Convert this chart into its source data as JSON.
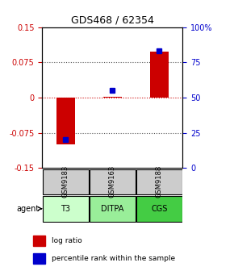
{
  "title": "GDS468 / 62354",
  "samples": [
    "GSM9183",
    "GSM9163",
    "GSM9188"
  ],
  "agents": [
    "T3",
    "DITPA",
    "CGS"
  ],
  "log_ratios": [
    -0.1,
    0.002,
    0.098
  ],
  "percentile_ranks": [
    20,
    55,
    83
  ],
  "ylim_left": [
    -0.15,
    0.15
  ],
  "ylim_right": [
    0,
    100
  ],
  "yticks_left": [
    -0.15,
    -0.075,
    0,
    0.075,
    0.15
  ],
  "yticks_right": [
    0,
    25,
    50,
    75,
    100
  ],
  "ytick_labels_left": [
    "-0.15",
    "-0.075",
    "0",
    "0.075",
    "0.15"
  ],
  "ytick_labels_right": [
    "0",
    "25",
    "50",
    "75",
    "100%"
  ],
  "bar_color": "#cc0000",
  "dot_color": "#0000cc",
  "agent_colors": [
    "#ccffcc",
    "#99ee99",
    "#44cc44"
  ],
  "sample_bg": "#cccccc",
  "grid_color": "#555555",
  "zero_line_color": "#cc0000",
  "bar_width": 0.4,
  "legend_bar_label": "log ratio",
  "legend_dot_label": "percentile rank within the sample"
}
